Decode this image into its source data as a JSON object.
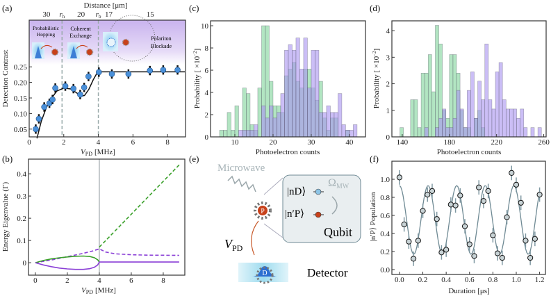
{
  "panel_labels": {
    "a": "(a)",
    "b": "(b)",
    "c": "(c)",
    "d": "(d)",
    "e": "(e)",
    "f": "(f)"
  },
  "chart_data": [
    {
      "id": "a",
      "type": "scatter",
      "xlabel_main": "V",
      "xlabel_sub": "PD",
      "xlabel_unit": "[MHz]",
      "ylabel": "Detection Contrast",
      "top_axis_label": "Distance [μm]",
      "top_ticks": [
        {
          "x": 1.0,
          "label": "30"
        },
        {
          "x": 1.9,
          "label": "r_h"
        },
        {
          "x": 3.0,
          "label": "20"
        },
        {
          "x": 4.0,
          "label": "r_b"
        },
        {
          "x": 4.6,
          "label": "17"
        },
        {
          "x": 7.0,
          "label": "15"
        }
      ],
      "xlim": [
        0,
        9.04
      ],
      "ylim": [
        0.025,
        0.4
      ],
      "xticks": [
        0,
        2,
        4,
        6,
        8
      ],
      "yticks": [
        0.05,
        0.1,
        0.15,
        0.2,
        0.25
      ],
      "ytick_labels": [
        "0.05",
        "0.10",
        "0.15",
        "0.20",
        "0.25"
      ],
      "dashed_lines_x": [
        1.9,
        4.0
      ],
      "regions": [
        "Probabilistic",
        "Hopping",
        "Coherent",
        "Exchange",
        "Polariton",
        "Blockade"
      ],
      "points": [
        [
          0.38,
          0.05
        ],
        [
          0.56,
          0.083
        ],
        [
          0.87,
          0.121
        ],
        [
          1.17,
          0.133
        ],
        [
          1.35,
          0.145
        ],
        [
          1.51,
          0.182
        ],
        [
          2.09,
          0.188
        ],
        [
          2.56,
          0.18
        ],
        [
          2.95,
          0.161
        ],
        [
          3.18,
          0.184
        ],
        [
          3.43,
          0.219
        ],
        [
          4.03,
          0.233
        ],
        [
          4.78,
          0.227
        ],
        [
          5.74,
          0.227
        ],
        [
          6.98,
          0.238
        ],
        [
          7.75,
          0.24
        ],
        [
          8.58,
          0.24
        ]
      ],
      "error": 0.015,
      "fit": [
        [
          0.45,
          0.02
        ],
        [
          0.7,
          0.075
        ],
        [
          1.0,
          0.12
        ],
        [
          1.3,
          0.15
        ],
        [
          1.6,
          0.172
        ],
        [
          2.0,
          0.182
        ],
        [
          2.4,
          0.179
        ],
        [
          2.7,
          0.168
        ],
        [
          3.0,
          0.156
        ],
        [
          3.2,
          0.158
        ],
        [
          3.45,
          0.178
        ],
        [
          3.7,
          0.208
        ],
        [
          3.9,
          0.228
        ],
        [
          4.0,
          0.234
        ],
        [
          9.0,
          0.234
        ]
      ],
      "colors": {
        "points": "#4a90d9",
        "fit": "#111111",
        "region": "#c9b3ee"
      }
    },
    {
      "id": "b",
      "type": "line",
      "xlabel_main": "V",
      "xlabel_sub": "PD",
      "xlabel_unit": "[MHz]",
      "ylabel": "Energy Eigenvalue (Γ)",
      "xlim": [
        -0.43,
        9.35
      ],
      "ylim": [
        -0.056,
        0.466
      ],
      "xticks": [
        0,
        2,
        4,
        6,
        8
      ],
      "yticks": [
        0,
        0.1,
        0.2,
        0.3,
        0.4
      ],
      "ytick_labels": [
        "0",
        "0.1",
        "0.2",
        "0.3",
        "0.4"
      ],
      "vline_x": 4,
      "series": [
        {
          "color": "#3aa02a",
          "dashed": true,
          "points": [
            [
              4,
              0.07
            ],
            [
              9,
              0.44
            ]
          ]
        },
        {
          "color": "#8a3fd6",
          "dashed": true,
          "points": [
            [
              0,
              0
            ],
            [
              1,
              0.012
            ],
            [
              2,
              0.027
            ],
            [
              3,
              0.042
            ],
            [
              3.6,
              0.053
            ],
            [
              4,
              0.062
            ],
            [
              4.4,
              0.048
            ],
            [
              5,
              0.04
            ],
            [
              6,
              0.036
            ],
            [
              7,
              0.034
            ],
            [
              9,
              0.033
            ]
          ]
        },
        {
          "color": "#3aa02a",
          "dashed": false,
          "points": [
            [
              0,
              0
            ],
            [
              0.5,
              0.01
            ],
            [
              1,
              0.017
            ],
            [
              1.5,
              0.022
            ],
            [
              2,
              0.026
            ],
            [
              2.5,
              0.029
            ],
            [
              3,
              0.03
            ],
            [
              3.4,
              0.028
            ],
            [
              3.7,
              0.022
            ],
            [
              3.9,
              0.013
            ],
            [
              4,
              0.003
            ]
          ]
        },
        {
          "color": "#8a3fd6",
          "dashed": false,
          "points": [
            [
              0,
              0
            ],
            [
              0.5,
              -0.01
            ],
            [
              1,
              -0.018
            ],
            [
              1.5,
              -0.024
            ],
            [
              2,
              -0.028
            ],
            [
              2.5,
              -0.03
            ],
            [
              3,
              -0.03
            ],
            [
              3.4,
              -0.027
            ],
            [
              3.7,
              -0.02
            ],
            [
              3.9,
              -0.01
            ],
            [
              4,
              0.003
            ],
            [
              9,
              0.003
            ]
          ]
        }
      ]
    },
    {
      "id": "c",
      "type": "bar",
      "xlabel": "Photoelectron counts",
      "ylabel_main": "Probability [ ×10",
      "ylabel_sup": "−2",
      "ylabel_end": "]",
      "xlim": [
        3.64,
        44.2
      ],
      "ylim": [
        0,
        10.44
      ],
      "xticks": [
        10,
        20,
        30,
        40
      ],
      "yticks": [
        0,
        2,
        4,
        6,
        8,
        10
      ],
      "bin_width": 1,
      "series": [
        {
          "color": "#7fd49a",
          "bins": [
            6,
            7,
            8,
            9,
            10,
            11,
            12,
            13,
            14,
            15,
            16,
            17,
            18,
            19,
            20,
            21,
            22,
            23,
            24,
            25,
            26,
            27,
            28,
            29,
            30,
            31,
            32,
            33,
            34,
            35,
            36,
            37,
            38,
            39,
            40,
            41
          ],
          "values": [
            0.6,
            0.6,
            2.2,
            0.6,
            2.8,
            0,
            4.4,
            3.9,
            1.1,
            0.6,
            4.4,
            10,
            10,
            5,
            2.8,
            2.8,
            2.2,
            5.5,
            6.1,
            6.7,
            5,
            4.4,
            6.1,
            6.1,
            4.4,
            3.3,
            5,
            1.7,
            0.6,
            1.7,
            1.7,
            0,
            0,
            0.6,
            0,
            0
          ]
        },
        {
          "color": "#a893f0",
          "bins": [
            11,
            12,
            13,
            14,
            15,
            16,
            17,
            18,
            19,
            20,
            21,
            22,
            23,
            24,
            25,
            26,
            27,
            28,
            29,
            30,
            31,
            32,
            33,
            34,
            35,
            36,
            37,
            38,
            39,
            40,
            41
          ],
          "values": [
            0.6,
            0.6,
            0.6,
            0.6,
            1.1,
            0,
            2.8,
            1.7,
            2.8,
            1.7,
            2.2,
            3.9,
            7.8,
            8.3,
            7.8,
            8.9,
            6.1,
            8.9,
            4.4,
            7.8,
            7.8,
            2.2,
            2.2,
            2.8,
            2.2,
            2.2,
            3.9,
            1.1,
            0.6,
            0.6,
            1.1
          ]
        }
      ]
    },
    {
      "id": "d",
      "type": "bar",
      "xlabel": "Photoelectron counts",
      "ylabel_main": "Probability [ ×10",
      "ylabel_sup": "−2",
      "ylabel_end": "]",
      "xlim": [
        131.2,
        262
      ],
      "ylim": [
        0,
        4.37
      ],
      "xticks": [
        140,
        180,
        220,
        260
      ],
      "yticks": [
        0,
        1,
        2,
        3,
        4
      ],
      "bin_width": 3,
      "series": [
        {
          "color": "#7fd49a",
          "bins": [
            138,
            141,
            144,
            147,
            150,
            153,
            156,
            159,
            162,
            165,
            168,
            171,
            174,
            177,
            180,
            183,
            186,
            189,
            192,
            195,
            198,
            201,
            204,
            207
          ],
          "values": [
            0.35,
            0,
            0,
            1.4,
            1.4,
            0.35,
            2.4,
            2.4,
            3.1,
            1.7,
            4.2,
            3.5,
            1.0,
            0.7,
            3.1,
            3.1,
            2.4,
            1.0,
            0.35,
            0.35,
            0,
            0.7,
            1.0,
            0.35
          ]
        },
        {
          "color": "#a893f0",
          "bins": [
            159,
            168,
            171,
            174,
            177,
            180,
            183,
            186,
            189,
            192,
            195,
            198,
            201,
            204,
            207,
            210,
            213,
            216,
            219,
            222,
            225,
            228,
            231,
            234,
            237,
            240,
            243,
            249,
            255
          ],
          "values": [
            0.35,
            0.35,
            0.7,
            1.05,
            0.35,
            0.35,
            0.7,
            1.75,
            1.05,
            0.35,
            1.75,
            2.45,
            0.7,
            2.1,
            1.4,
            3.5,
            1.4,
            1.05,
            2.45,
            2.8,
            1.4,
            1.05,
            1.05,
            1.05,
            0.7,
            1.05,
            0.35,
            0.35,
            0.35
          ]
        }
      ]
    },
    {
      "id": "f",
      "type": "scatter",
      "xlabel": "Duration [μs]",
      "ylabel": "|n′P⟩ Population",
      "xlim": [
        -0.065,
        1.25
      ],
      "ylim": [
        -0.054,
        1.2
      ],
      "xticks": [
        0,
        0.2,
        0.4,
        0.6,
        0.8,
        1.0,
        1.2
      ],
      "xtick_labels": [
        "0.0",
        "0.2",
        "0.4",
        "0.6",
        "0.8",
        "1.0",
        "1.2"
      ],
      "yticks": [
        0,
        0.2,
        0.4,
        0.6,
        0.8,
        1.0
      ],
      "ytick_labels": [
        "0.0",
        "0.2",
        "0.4",
        "0.6",
        "0.8",
        "1.0"
      ],
      "points": [
        [
          0,
          1.02
        ],
        [
          0.04,
          0.5
        ],
        [
          0.08,
          0.31
        ],
        [
          0.12,
          0.12
        ],
        [
          0.16,
          0.32
        ],
        [
          0.2,
          0.65
        ],
        [
          0.24,
          0.83
        ],
        [
          0.28,
          0.87
        ],
        [
          0.32,
          0.56
        ],
        [
          0.36,
          0.19
        ],
        [
          0.4,
          0.22
        ],
        [
          0.44,
          0.72
        ],
        [
          0.48,
          0.71
        ],
        [
          0.52,
          0.82
        ],
        [
          0.56,
          0.48
        ],
        [
          0.6,
          0.28
        ],
        [
          0.64,
          0.15
        ],
        [
          0.68,
          0.91
        ],
        [
          0.72,
          0.76
        ],
        [
          0.76,
          0.87
        ],
        [
          0.8,
          0.38
        ],
        [
          0.84,
          0.18
        ],
        [
          0.88,
          0.13
        ],
        [
          0.92,
          0.58
        ],
        [
          0.96,
          1.07
        ],
        [
          1.0,
          0.94
        ],
        [
          1.04,
          0.74
        ],
        [
          1.08,
          0.32
        ],
        [
          1.12,
          0.13
        ],
        [
          1.16,
          0.34
        ],
        [
          1.2,
          0.83
        ]
      ],
      "error": 0.08,
      "fit": {
        "offset": 0.55,
        "amplitude": 0.38,
        "period_us": 0.245
      },
      "colors": {
        "points": "#c8d3d6",
        "fit": "#6f8a94"
      }
    }
  ],
  "diagram_e": {
    "microwave": "Microwave",
    "omega_main": "Ω",
    "omega_sub": "MW",
    "state_d": "|nD⟩",
    "state_p": "|n′P⟩",
    "qubit": "Qubit",
    "vpd_main": "V",
    "vpd_sub": "PD",
    "detector": "Detector",
    "atom_p": "P",
    "atom_d": "D"
  }
}
